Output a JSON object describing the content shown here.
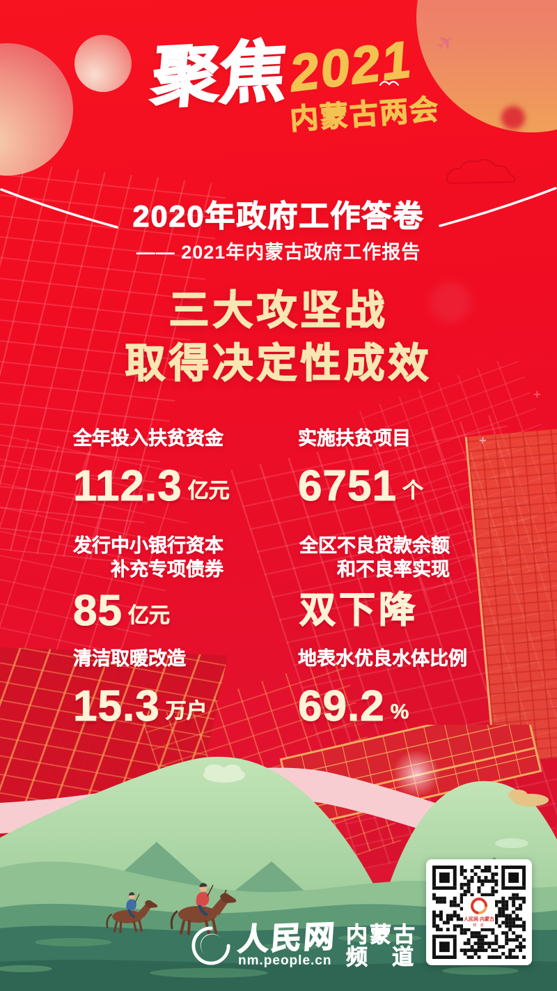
{
  "poster": {
    "brand": {
      "focus": "聚焦",
      "year": "2021",
      "event": "内蒙古两会"
    },
    "header": {
      "title": "2020年政府工作答卷",
      "subtitle": "—— 2021年内蒙古政府工作报告"
    },
    "headline": {
      "line1": "三大攻坚战",
      "line2": "取得决定性成效"
    },
    "stats": [
      {
        "label_lines": [
          "全年投入扶贫资金"
        ],
        "value": "112.3",
        "unit": "亿元"
      },
      {
        "label_lines": [
          "实施扶贫项目"
        ],
        "value": "6751",
        "unit": "个"
      },
      {
        "label_lines": [
          "发行中小银行资本",
          "补充专项债券"
        ],
        "value": "85",
        "unit": "亿元"
      },
      {
        "label_lines": [
          "全区不良贷款余额",
          "和不良率实现"
        ],
        "value": "双下降",
        "unit": ""
      },
      {
        "label_lines": [
          "清洁取暖改造"
        ],
        "value": "15.3",
        "unit": "万户"
      },
      {
        "label_lines": [
          "地表水优良水体比例"
        ],
        "value": "69.2",
        "unit": "%"
      }
    ],
    "footer": {
      "site_name": "人民网",
      "site_url": "nm.people.cn",
      "channel_line1": "内蒙古",
      "channel_word1": "频",
      "channel_word2": "道",
      "qr_line1": "人民网 内蒙古",
      "qr_line2": "频 道"
    },
    "colors": {
      "background_red": "#ee0e24",
      "gold": "#f2c351",
      "cream_headline": "#f8e7b2",
      "stat_number": "#fdf3d6",
      "hill_green": "#a9d4a6",
      "ground_green": "#3a7660",
      "pink_ribbon": "#f7cdd2"
    }
  }
}
